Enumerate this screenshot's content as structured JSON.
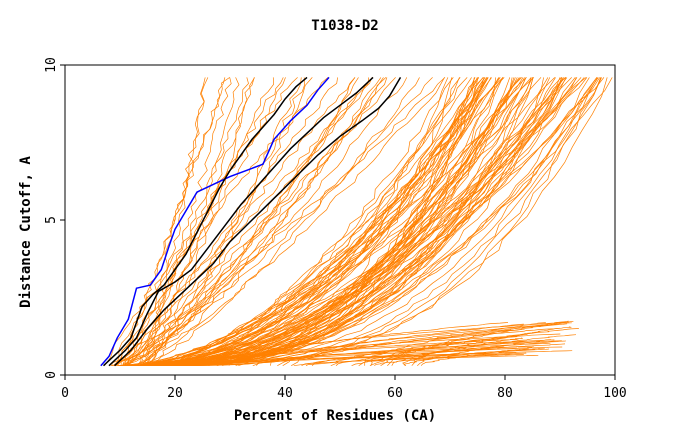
{
  "chart_data": {
    "type": "line",
    "title": "T1038-D2",
    "xlabel": "Percent of Residues (CA)",
    "ylabel": "Distance Cutoff, A",
    "xlim": [
      0,
      100
    ],
    "ylim": [
      0,
      10
    ],
    "x_ticks": [
      0,
      20,
      40,
      60,
      80,
      100
    ],
    "y_ticks": [
      0,
      5,
      10
    ],
    "grid": false,
    "legend": "none",
    "colors": {
      "background_models": "#ff8000",
      "highlight_blue": "#0000ff",
      "highlight_black": "#000000"
    },
    "background_series_count": 160,
    "highlight_series": [
      {
        "color": "#0000ff",
        "points": [
          [
            6.5,
            0.3
          ],
          [
            8,
            0.6
          ],
          [
            9.5,
            1.2
          ],
          [
            11.5,
            1.8
          ],
          [
            13,
            2.8
          ],
          [
            15.5,
            2.9
          ],
          [
            17.5,
            3.4
          ],
          [
            19,
            4.2
          ],
          [
            20,
            4.7
          ],
          [
            22,
            5.3
          ],
          [
            24,
            5.9
          ],
          [
            30,
            6.4
          ],
          [
            33,
            6.6
          ],
          [
            36,
            6.8
          ],
          [
            38,
            7.6
          ],
          [
            41,
            8.2
          ],
          [
            44,
            8.7
          ],
          [
            46,
            9.2
          ],
          [
            48,
            9.6
          ]
        ]
      },
      {
        "color": "#000000",
        "points": [
          [
            7,
            0.3
          ],
          [
            10,
            0.8
          ],
          [
            12,
            1.2
          ],
          [
            14,
            2.2
          ],
          [
            16,
            2.6
          ],
          [
            18,
            2.9
          ],
          [
            20,
            3.4
          ],
          [
            22,
            3.9
          ],
          [
            24,
            4.6
          ],
          [
            26,
            5.3
          ],
          [
            28,
            6.0
          ],
          [
            30,
            6.6
          ],
          [
            32,
            7.1
          ],
          [
            34,
            7.6
          ],
          [
            36,
            8.0
          ],
          [
            38,
            8.4
          ],
          [
            40,
            8.9
          ],
          [
            42,
            9.3
          ],
          [
            44,
            9.6
          ]
        ]
      },
      {
        "color": "#000000",
        "points": [
          [
            8,
            0.3
          ],
          [
            11,
            0.8
          ],
          [
            13,
            1.2
          ],
          [
            15,
            2.0
          ],
          [
            17,
            2.7
          ],
          [
            20,
            3.0
          ],
          [
            23,
            3.4
          ],
          [
            26,
            4.1
          ],
          [
            29,
            4.8
          ],
          [
            32,
            5.5
          ],
          [
            35,
            6.1
          ],
          [
            38,
            6.7
          ],
          [
            41,
            7.3
          ],
          [
            44,
            7.8
          ],
          [
            47,
            8.3
          ],
          [
            50,
            8.7
          ],
          [
            53,
            9.1
          ],
          [
            56,
            9.6
          ]
        ]
      },
      {
        "color": "#000000",
        "points": [
          [
            9,
            0.3
          ],
          [
            12,
            0.8
          ],
          [
            15,
            1.5
          ],
          [
            18,
            2.1
          ],
          [
            21,
            2.6
          ],
          [
            24,
            3.1
          ],
          [
            27,
            3.6
          ],
          [
            30,
            4.3
          ],
          [
            34,
            5.0
          ],
          [
            38,
            5.7
          ],
          [
            42,
            6.4
          ],
          [
            46,
            7.1
          ],
          [
            50,
            7.7
          ],
          [
            54,
            8.2
          ],
          [
            57,
            8.6
          ],
          [
            59,
            9.0
          ],
          [
            61,
            9.6
          ]
        ]
      }
    ]
  }
}
